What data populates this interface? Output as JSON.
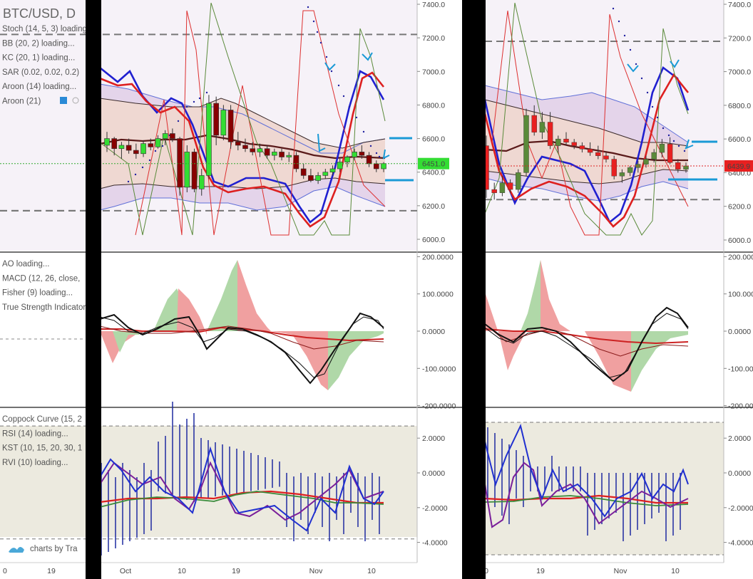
{
  "left_panel": {
    "symbol": "BTC/USD, D",
    "indicators": [
      "Stoch (14, 5, 3) loading...",
      "BB (20, 2) loading...",
      "KC (20, 1) loading...",
      "SAR (0.02, 0.02, 0.2)",
      "Aroon (14) loading...",
      "Aroon (21)"
    ],
    "osc_indicators": [
      "AO loading...",
      "MACD (12, 26, close,",
      "Fisher (9) loading...",
      "True Strength Indicator"
    ],
    "low_indicators": [
      "Coppock Curve (15, 2",
      "RSI (14) loading...",
      "KST (10, 15, 20, 30, 1",
      "RVI (10) loading..."
    ],
    "logo": "charts by Tra"
  },
  "chart_data": [
    {
      "type": "candlestick",
      "panel": "price-left",
      "price_label": "6451.0",
      "y_ticks": [
        "7400.0",
        "7200.0",
        "7000.0",
        "6800.0",
        "6600.0",
        "6400.0",
        "6200.0",
        "6000.0"
      ],
      "ylim": [
        5980,
        7400
      ],
      "dashed_levels": [
        7220,
        6170
      ],
      "x_ticks": [
        "Oct",
        "10",
        "19",
        "Nov",
        "10"
      ],
      "outer_x_ticks": [
        "0",
        "19"
      ],
      "candles": [
        [
          6560,
          6640,
          6520,
          6600
        ],
        [
          6600,
          6610,
          6500,
          6540
        ],
        [
          6540,
          6580,
          6480,
          6560
        ],
        [
          6560,
          6600,
          6510,
          6530
        ],
        [
          6530,
          6570,
          6480,
          6510
        ],
        [
          6510,
          6590,
          6490,
          6570
        ],
        [
          6570,
          6600,
          6530,
          6550
        ],
        [
          6550,
          6620,
          6540,
          6600
        ],
        [
          6600,
          6650,
          6560,
          6630
        ],
        [
          6630,
          6660,
          6580,
          6600
        ],
        [
          6600,
          6610,
          6260,
          6310
        ],
        [
          6310,
          6560,
          6280,
          6520
        ],
        [
          6520,
          6540,
          6280,
          6300
        ],
        [
          6300,
          6420,
          6260,
          6380
        ],
        [
          6380,
          6860,
          6360,
          6810
        ],
        [
          6810,
          6850,
          6560,
          6620
        ],
        [
          6620,
          6800,
          6590,
          6770
        ],
        [
          6770,
          6800,
          6540,
          6580
        ],
        [
          6580,
          6640,
          6530,
          6560
        ],
        [
          6560,
          6600,
          6520,
          6540
        ],
        [
          6540,
          6580,
          6500,
          6520
        ],
        [
          6520,
          6570,
          6490,
          6540
        ],
        [
          6540,
          6560,
          6480,
          6500
        ],
        [
          6500,
          6540,
          6470,
          6520
        ],
        [
          6520,
          6540,
          6470,
          6490
        ],
        [
          6490,
          6520,
          6460,
          6500
        ],
        [
          6500,
          6520,
          6400,
          6420
        ],
        [
          6420,
          6450,
          6360,
          6380
        ],
        [
          6380,
          6420,
          6340,
          6350
        ],
        [
          6350,
          6400,
          6330,
          6380
        ],
        [
          6380,
          6420,
          6360,
          6400
        ],
        [
          6400,
          6440,
          6380,
          6420
        ],
        [
          6420,
          6480,
          6400,
          6460
        ],
        [
          6460,
          6500,
          6430,
          6490
        ],
        [
          6490,
          6540,
          6470,
          6520
        ],
        [
          6520,
          6560,
          6480,
          6500
        ],
        [
          6500,
          6520,
          6430,
          6450
        ],
        [
          6450,
          6470,
          6400,
          6420
        ],
        [
          6420,
          6460,
          6400,
          6451
        ]
      ],
      "series_names": [
        "Stoch %K",
        "Stoch %D",
        "BB mid",
        "BB upper",
        "BB lower",
        "KC mid",
        "KC upper",
        "KC lower",
        "Aroon Up",
        "Aroon Down"
      ]
    },
    {
      "type": "candlestick",
      "panel": "price-right",
      "price_label": "6439.9",
      "y_ticks": [
        "7400.0",
        "7200.0",
        "7000.0",
        "6800.0",
        "6600.0",
        "6400.0",
        "6200.0",
        "6000.0"
      ],
      "ylim": [
        5980,
        7400
      ],
      "dashed_levels": [
        7180,
        6240
      ],
      "x_ticks": [
        "0",
        "19",
        "Nov",
        "10"
      ],
      "candles": [
        [
          6560,
          6620,
          6250,
          6300
        ],
        [
          6300,
          6340,
          6240,
          6280
        ],
        [
          6280,
          6380,
          6260,
          6340
        ],
        [
          6340,
          6360,
          6280,
          6300
        ],
        [
          6300,
          6420,
          6280,
          6400
        ],
        [
          6400,
          6780,
          6380,
          6740
        ],
        [
          6740,
          6800,
          6620,
          6640
        ],
        [
          6640,
          6760,
          6600,
          6700
        ],
        [
          6700,
          6760,
          6540,
          6560
        ],
        [
          6560,
          6620,
          6520,
          6600
        ],
        [
          6600,
          6640,
          6560,
          6580
        ],
        [
          6580,
          6600,
          6540,
          6560
        ],
        [
          6560,
          6580,
          6520,
          6540
        ],
        [
          6540,
          6580,
          6500,
          6520
        ],
        [
          6520,
          6560,
          6480,
          6500
        ],
        [
          6500,
          6520,
          6460,
          6480
        ],
        [
          6480,
          6500,
          6360,
          6380
        ],
        [
          6380,
          6420,
          6340,
          6400
        ],
        [
          6400,
          6440,
          6380,
          6430
        ],
        [
          6430,
          6470,
          6400,
          6450
        ],
        [
          6450,
          6500,
          6430,
          6480
        ],
        [
          6480,
          6540,
          6460,
          6520
        ],
        [
          6520,
          6600,
          6490,
          6570
        ],
        [
          6570,
          6610,
          6450,
          6460
        ],
        [
          6460,
          6480,
          6400,
          6420
        ],
        [
          6420,
          6460,
          6400,
          6439.9
        ]
      ]
    },
    {
      "type": "area",
      "panel": "oscillator",
      "y_ticks": [
        "200.0000",
        "100.0000",
        "0.0000",
        "-100.0000",
        "-200.0000"
      ],
      "ylim": [
        -200,
        200
      ],
      "series_names": [
        "AO",
        "MACD",
        "MACD signal",
        "Fisher",
        "TSI"
      ]
    },
    {
      "type": "line",
      "panel": "lower",
      "y_ticks": [
        "2.0000",
        "0.0000",
        "-2.0000",
        "-4.0000"
      ],
      "ylim": [
        -4.6,
        3
      ],
      "dashed_levels": [
        2.7,
        -3.8
      ],
      "series_names": [
        "Coppock",
        "RSI",
        "KST",
        "RVI"
      ]
    }
  ]
}
